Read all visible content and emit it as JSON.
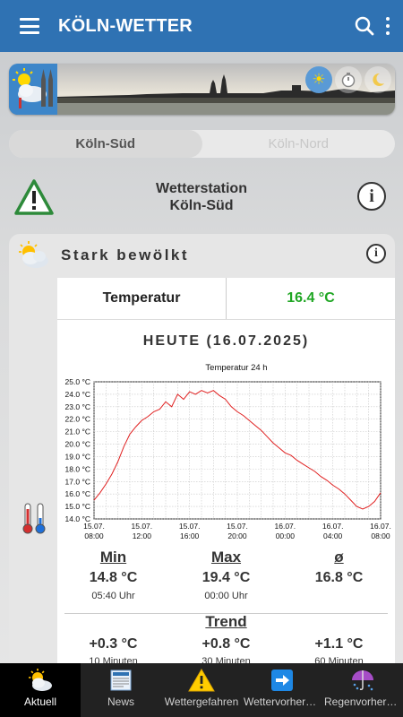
{
  "app": {
    "title": "KÖLN-WETTER"
  },
  "colors": {
    "appbar": "#2f72b3",
    "temp_value": "#1fa623",
    "chart_line": "#e02020",
    "nav_bg": "#222222"
  },
  "header": {
    "icons": [
      "menu-icon",
      "search-icon",
      "more-vert-icon"
    ]
  },
  "banner": {
    "modes": [
      {
        "icon": "sun-icon",
        "active": true
      },
      {
        "icon": "clock-icon",
        "active": false
      },
      {
        "icon": "moon-icon",
        "active": false
      }
    ]
  },
  "tabs": [
    {
      "label": "Köln-Süd",
      "active": true
    },
    {
      "label": "Köln-Nord",
      "active": false
    }
  ],
  "station": {
    "line1": "Wetterstation",
    "line2": "Köln-Süd",
    "icons": [
      "warning-icon",
      "info-icon"
    ]
  },
  "condition": {
    "text": "Stark bewölkt",
    "icon": "cloudy-sun-icon"
  },
  "temperature": {
    "label": "Temperatur",
    "value": "16.4 °C"
  },
  "day_title": "HEUTE (16.07.2025)",
  "chart_data": {
    "type": "line",
    "title": "Temperatur 24 h",
    "xlabel": "",
    "ylabel": "",
    "ylim": [
      14.0,
      25.0
    ],
    "yticks": [
      "14.0 °C",
      "15.0 °C",
      "16.0 °C",
      "17.0 °C",
      "18.0 °C",
      "19.0 °C",
      "20.0 °C",
      "21.0 °C",
      "22.0 °C",
      "23.0 °C",
      "24.0 °C",
      "25.0 °C"
    ],
    "xticks": [
      {
        "hour": 8,
        "date": "15.07.",
        "time": "08:00"
      },
      {
        "hour": 12,
        "date": "15.07.",
        "time": "12:00"
      },
      {
        "hour": 16,
        "date": "15.07.",
        "time": "16:00"
      },
      {
        "hour": 20,
        "date": "15.07.",
        "time": "20:00"
      },
      {
        "hour": 24,
        "date": "16.07.",
        "time": "00:00"
      },
      {
        "hour": 28,
        "date": "16.07.",
        "time": "04:00"
      },
      {
        "hour": 32,
        "date": "16.07.",
        "time": "08:00"
      }
    ],
    "xrange_hours": [
      8,
      32
    ],
    "grid": true,
    "series": [
      {
        "x": [
          8.0,
          8.5,
          9.0,
          9.5,
          10.0,
          10.5,
          11.0,
          11.5,
          12.0,
          12.5,
          13.0,
          13.5,
          14.0,
          14.5,
          15.0,
          15.5,
          16.0,
          16.5,
          17.0,
          17.5,
          18.0,
          18.5,
          19.0,
          19.5,
          20.0,
          20.5,
          21.0,
          21.5,
          22.0,
          22.5,
          23.0,
          23.5,
          24.0,
          24.5,
          25.0,
          25.5,
          26.0,
          26.5,
          27.0,
          27.5,
          28.0,
          28.5,
          29.0,
          29.5,
          30.0,
          30.5,
          31.0,
          31.5,
          32.0
        ],
        "y": [
          15.5,
          16.1,
          16.8,
          17.6,
          18.6,
          19.8,
          20.8,
          21.4,
          21.9,
          22.2,
          22.6,
          22.8,
          23.4,
          23.0,
          24.0,
          23.6,
          24.2,
          24.0,
          24.3,
          24.1,
          24.3,
          23.9,
          23.6,
          23.0,
          22.6,
          22.3,
          21.9,
          21.5,
          21.1,
          20.6,
          20.1,
          19.7,
          19.3,
          19.1,
          18.7,
          18.4,
          18.1,
          17.8,
          17.4,
          17.1,
          16.7,
          16.4,
          16.0,
          15.5,
          15.0,
          14.8,
          15.0,
          15.4,
          16.1
        ]
      }
    ]
  },
  "stats": {
    "min": {
      "label": "Min",
      "value": "14.8 °C",
      "time": "05:40 Uhr"
    },
    "max": {
      "label": "Max",
      "value": "19.4 °C",
      "time": "00:00 Uhr"
    },
    "avg": {
      "label": "ø",
      "value": "16.8 °C"
    }
  },
  "trend": {
    "label": "Trend",
    "items": [
      {
        "value": "+0.3 °C",
        "sub": "10 Minuten"
      },
      {
        "value": "+0.8 °C",
        "sub": "30 Minuten"
      },
      {
        "value": "+1.1 °C",
        "sub": "60 Minuten"
      }
    ]
  },
  "nav": [
    {
      "label": "Aktuell",
      "icon": "sun-cloud-icon",
      "active": true
    },
    {
      "label": "News",
      "icon": "newspaper-icon",
      "active": false
    },
    {
      "label": "Wettergefahren",
      "icon": "warning-icon",
      "active": false
    },
    {
      "label": "Wettervorhersage",
      "icon": "arrow-right-icon",
      "active": false
    },
    {
      "label": "Regenvorhersage",
      "icon": "umbrella-icon",
      "active": false
    }
  ]
}
